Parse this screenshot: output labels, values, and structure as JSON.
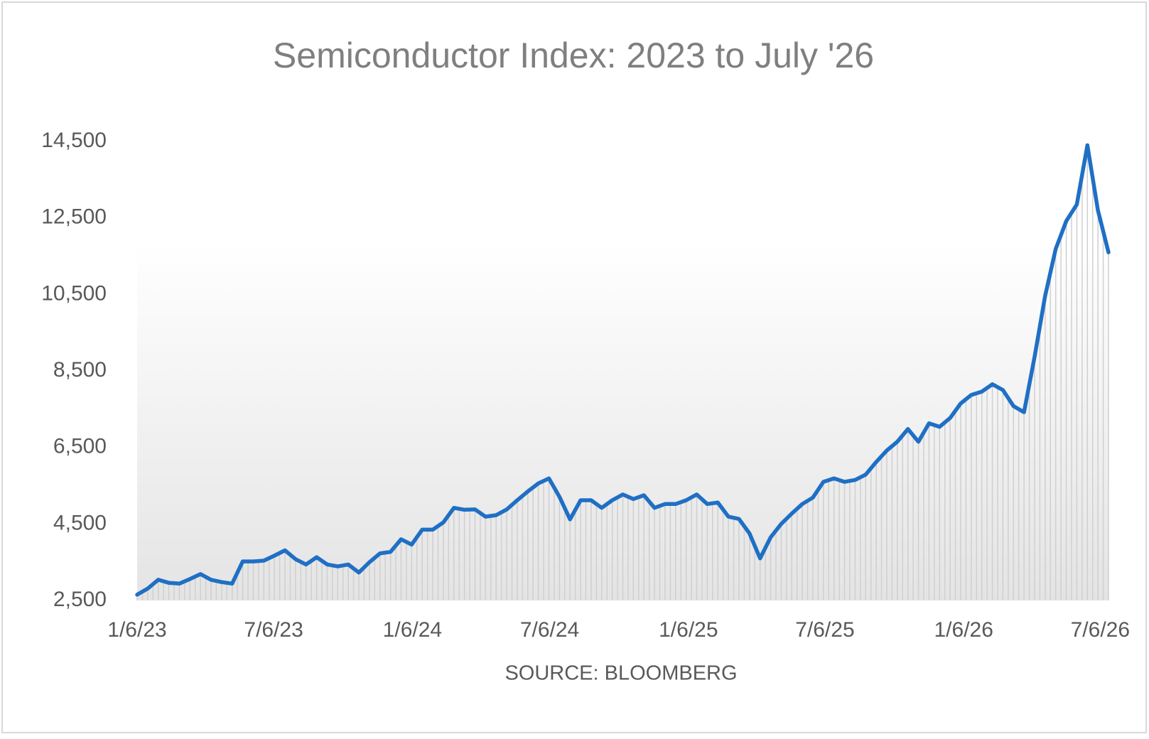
{
  "chart_data": {
    "type": "line",
    "title": "Semiconductor Index: 2023 to July '26",
    "source": "SOURCE: BLOOMBERG",
    "color": "#1f6fc5",
    "x": [
      "1/6/23",
      "1/20/23",
      "2/3/23",
      "2/17/23",
      "3/3/23",
      "3/17/23",
      "3/31/23",
      "4/14/23",
      "4/28/23",
      "5/12/23",
      "5/26/23",
      "6/9/23",
      "6/23/23",
      "7/7/23",
      "7/21/23",
      "8/4/23",
      "8/18/23",
      "9/1/23",
      "9/15/23",
      "9/29/23",
      "10/13/23",
      "10/27/23",
      "11/10/23",
      "11/24/23",
      "12/8/23",
      "12/22/23",
      "1/5/24",
      "1/19/24",
      "2/2/24",
      "2/16/24",
      "3/1/24",
      "3/15/24",
      "3/29/24",
      "4/12/24",
      "4/26/24",
      "5/10/24",
      "5/24/24",
      "6/7/24",
      "6/21/24",
      "7/5/24",
      "7/19/24",
      "8/2/24",
      "8/16/24",
      "8/30/24",
      "9/13/24",
      "9/27/24",
      "10/11/24",
      "10/25/24",
      "11/8/24",
      "11/22/24",
      "12/6/24",
      "12/20/24",
      "1/3/25",
      "1/17/25",
      "1/31/25",
      "2/14/25",
      "2/28/25",
      "3/14/25",
      "3/28/25",
      "4/11/25",
      "4/25/25",
      "5/9/25",
      "5/23/25",
      "6/6/25",
      "6/20/25",
      "7/4/25",
      "7/18/25",
      "8/1/25",
      "8/15/25",
      "8/29/25",
      "9/12/25",
      "9/26/25",
      "10/10/25",
      "10/24/25",
      "11/7/25",
      "11/21/25",
      "12/5/25",
      "12/19/25",
      "1/2/26",
      "1/16/26",
      "1/30/26",
      "2/13/26",
      "2/27/26",
      "3/13/26",
      "3/27/26",
      "4/10/26",
      "4/24/26",
      "5/8/26",
      "5/22/26",
      "6/5/26",
      "6/19/26",
      "7/3/26",
      "7/17/26"
    ],
    "values": [
      2650,
      2810,
      3040,
      2960,
      2940,
      3060,
      3190,
      3040,
      2980,
      2940,
      3520,
      3520,
      3540,
      3670,
      3810,
      3580,
      3440,
      3630,
      3440,
      3390,
      3440,
      3230,
      3500,
      3730,
      3770,
      4100,
      3960,
      4350,
      4350,
      4540,
      4920,
      4870,
      4880,
      4690,
      4730,
      4880,
      5120,
      5350,
      5560,
      5690,
      5210,
      4620,
      5120,
      5120,
      4920,
      5120,
      5270,
      5150,
      5250,
      4920,
      5020,
      5020,
      5120,
      5270,
      5020,
      5060,
      4690,
      4630,
      4250,
      3600,
      4150,
      4500,
      4770,
      5020,
      5190,
      5600,
      5690,
      5600,
      5650,
      5790,
      6120,
      6420,
      6650,
      6980,
      6650,
      7130,
      7040,
      7270,
      7650,
      7870,
      7960,
      8150,
      8000,
      7580,
      7420,
      8870,
      10460,
      11690,
      12420,
      12850,
      14400,
      12700,
      11600
    ],
    "xlim": [
      "1/6/23",
      "7/17/26"
    ],
    "xticks": [
      "1/6/23",
      "7/6/23",
      "1/6/24",
      "7/6/24",
      "1/6/25",
      "7/6/25",
      "1/6/26",
      "7/6/26"
    ],
    "ylim": [
      2500,
      14500
    ],
    "yticks": [
      {
        "value": 2500,
        "label": "2,500"
      },
      {
        "value": 4500,
        "label": "4,500"
      },
      {
        "value": 6500,
        "label": "6,500"
      },
      {
        "value": 8500,
        "label": "8,500"
      },
      {
        "value": 10500,
        "label": "10,500"
      },
      {
        "value": 12500,
        "label": "12,500"
      },
      {
        "value": 14500,
        "label": "14,500"
      }
    ],
    "grid": false
  }
}
